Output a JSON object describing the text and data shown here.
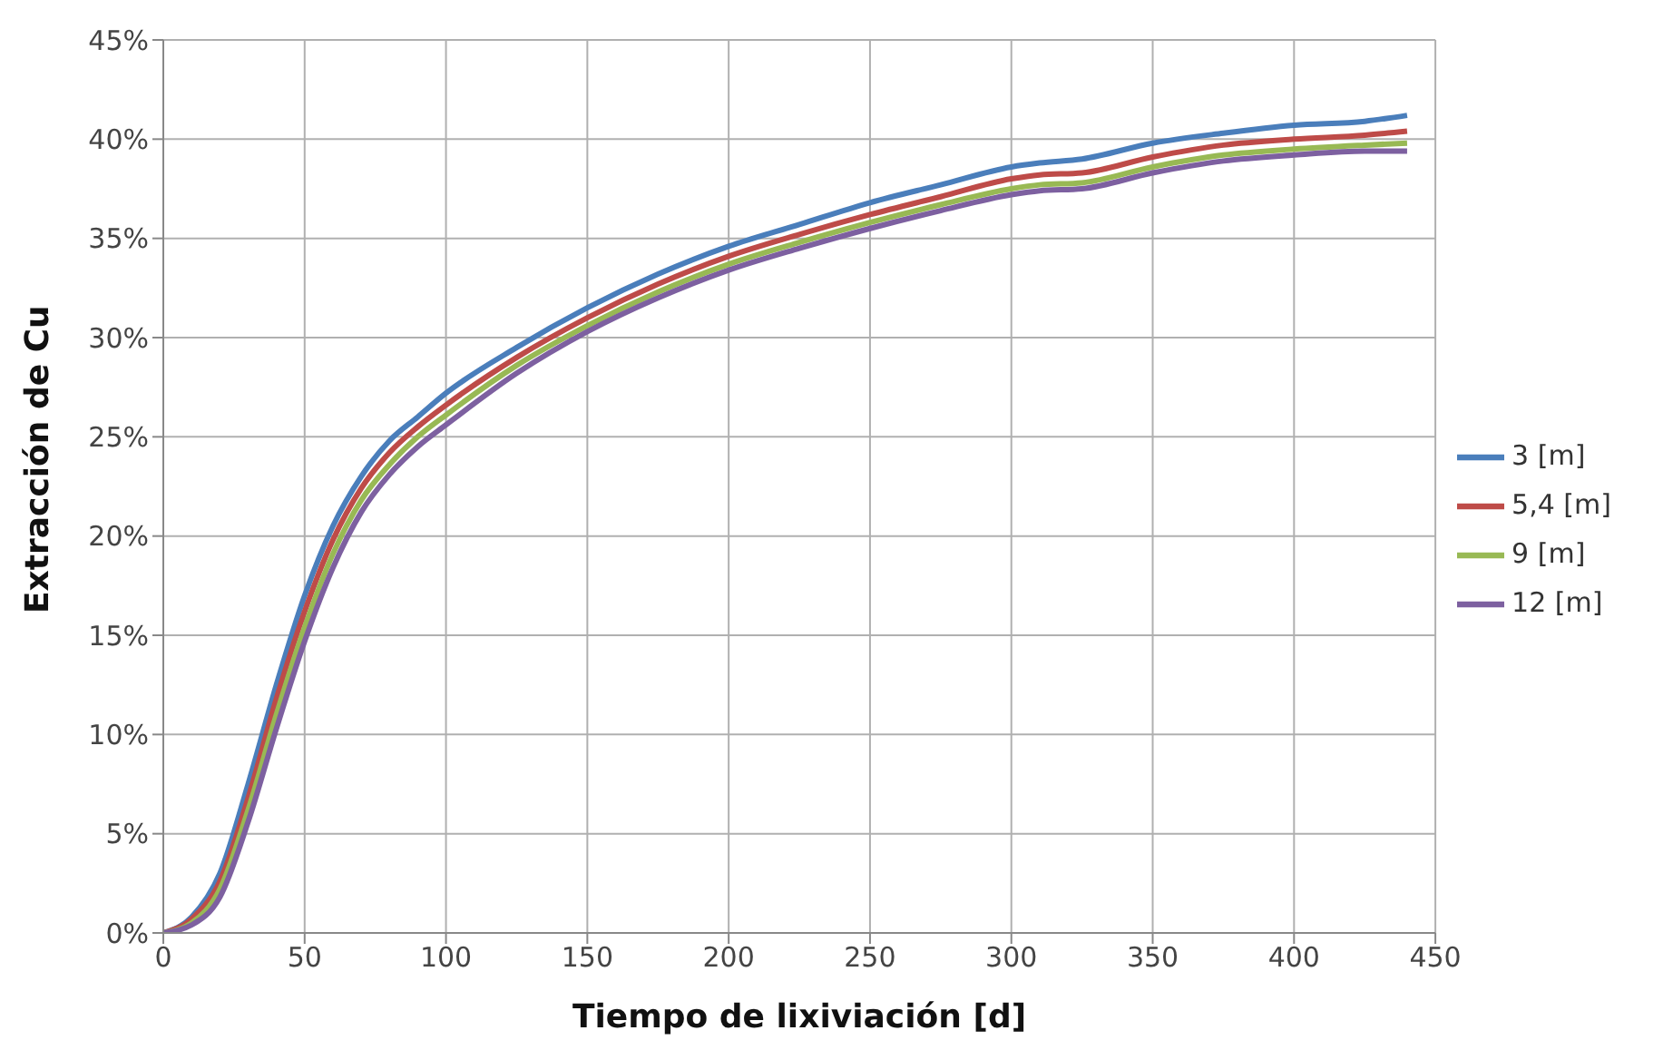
{
  "chart_data": {
    "type": "line",
    "xlabel": "Tiempo de lixiviación [d]",
    "ylabel": "Extracción de Cu",
    "x": [
      0,
      10,
      20,
      30,
      40,
      50,
      60,
      70,
      80,
      90,
      100,
      125,
      150,
      175,
      200,
      225,
      250,
      275,
      300,
      310,
      325,
      350,
      375,
      400,
      425,
      440
    ],
    "series": [
      {
        "name": "3 [m]",
        "color": "#4a7ebb",
        "values": [
          0,
          0.8,
          3,
          7.5,
          12.5,
          17,
          20.5,
          23,
          24.8,
          26,
          27.2,
          29.5,
          31.5,
          33.2,
          34.6,
          35.7,
          36.8,
          37.7,
          38.6,
          38.8,
          39,
          39.8,
          40.3,
          40.7,
          40.9,
          41.2
        ]
      },
      {
        "name": "5,4 [m]",
        "color": "#be4b48",
        "values": [
          0,
          0.7,
          2.6,
          6.8,
          11.8,
          16.2,
          19.8,
          22.4,
          24.2,
          25.5,
          26.6,
          29,
          31,
          32.7,
          34.1,
          35.2,
          36.2,
          37.1,
          38,
          38.2,
          38.3,
          39.1,
          39.7,
          40,
          40.2,
          40.4
        ]
      },
      {
        "name": "9 [m]",
        "color": "#98b954",
        "values": [
          0,
          0.5,
          2.2,
          6.2,
          11,
          15.4,
          19.1,
          21.8,
          23.6,
          25,
          26.1,
          28.6,
          30.6,
          32.3,
          33.7,
          34.8,
          35.8,
          36.7,
          37.5,
          37.7,
          37.8,
          38.6,
          39.2,
          39.5,
          39.7,
          39.8
        ]
      },
      {
        "name": "12 [m]",
        "color": "#7d60a0",
        "values": [
          0,
          0.4,
          1.8,
          5.6,
          10.3,
          14.7,
          18.4,
          21.2,
          23.1,
          24.5,
          25.6,
          28.2,
          30.3,
          32,
          33.4,
          34.5,
          35.5,
          36.4,
          37.2,
          37.4,
          37.5,
          38.3,
          38.9,
          39.2,
          39.4,
          39.4
        ]
      }
    ],
    "xlim": [
      0,
      450
    ],
    "xticks": [
      0,
      50,
      100,
      150,
      200,
      250,
      300,
      350,
      400,
      450
    ],
    "ylim": [
      0,
      45
    ],
    "yticks": [
      {
        "value": 0,
        "label": "0%"
      },
      {
        "value": 5,
        "label": "5%"
      },
      {
        "value": 10,
        "label": "10%"
      },
      {
        "value": 15,
        "label": "15%"
      },
      {
        "value": 20,
        "label": "20%"
      },
      {
        "value": 25,
        "label": "25%"
      },
      {
        "value": 30,
        "label": "30%"
      },
      {
        "value": 35,
        "label": "35%"
      },
      {
        "value": 40,
        "label": "40%"
      },
      {
        "value": 45,
        "label": "45%"
      }
    ],
    "grid": true,
    "legend": "right",
    "marker": "none",
    "line_style": "solid"
  }
}
